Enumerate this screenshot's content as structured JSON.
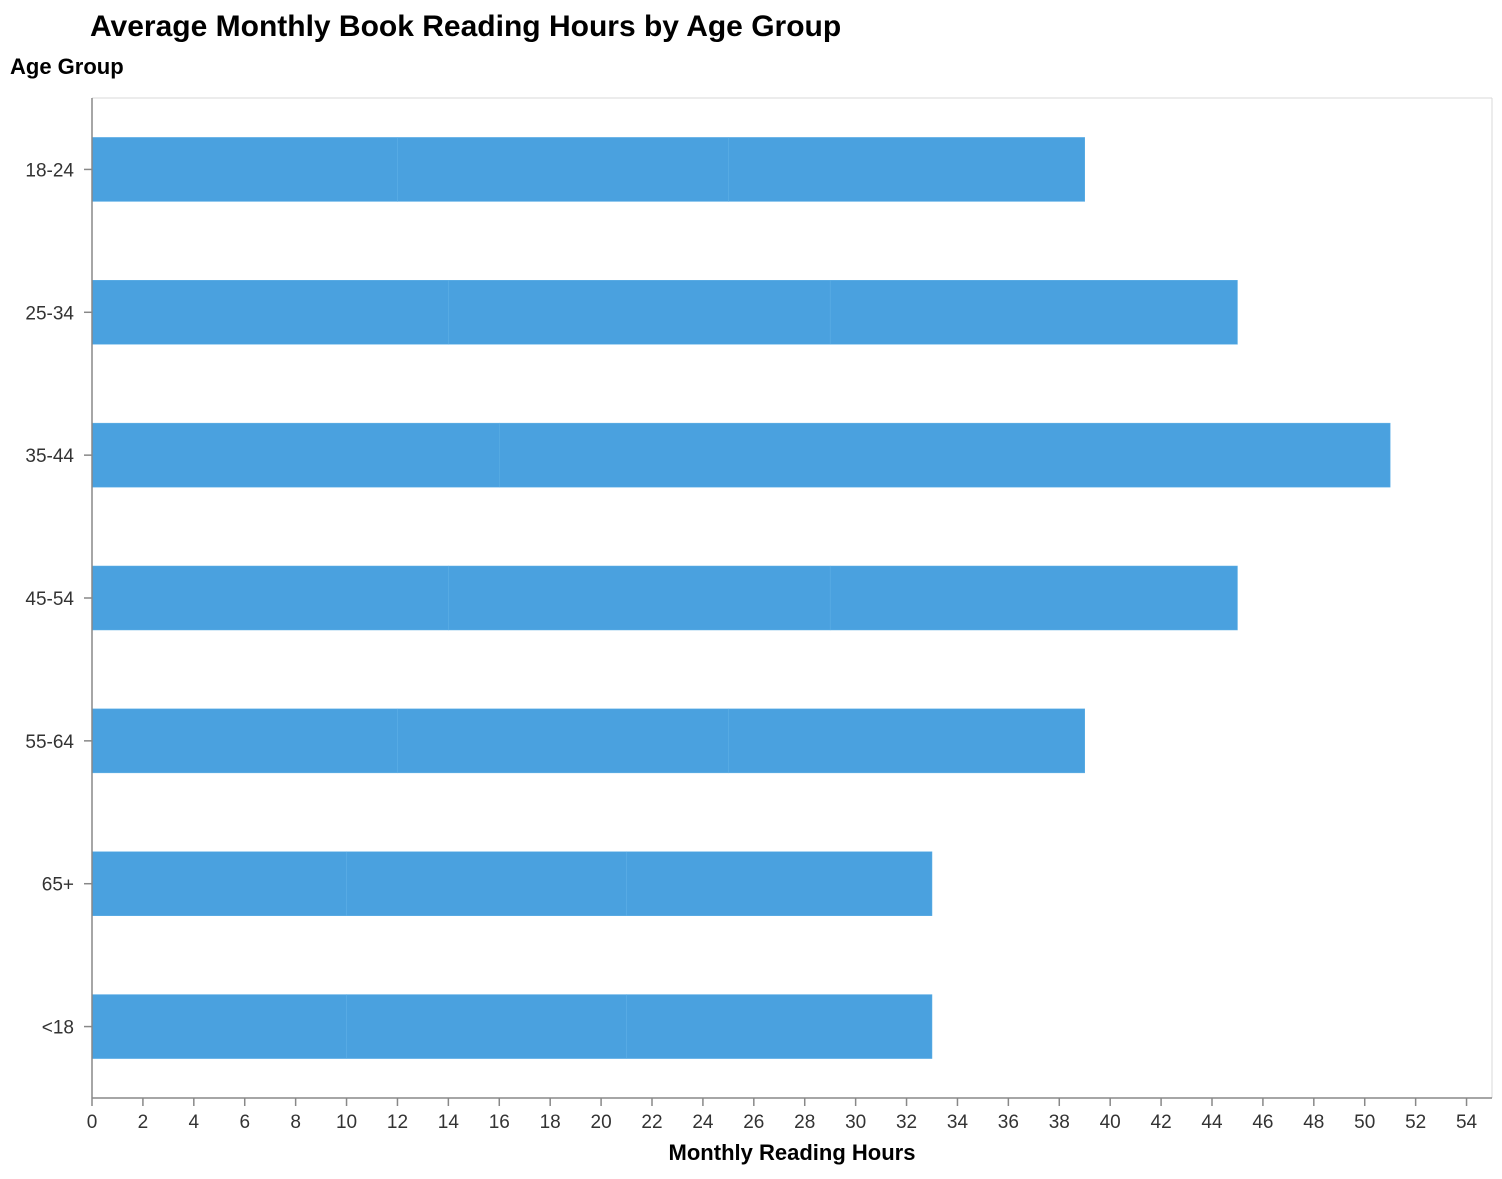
{
  "chart_data": {
    "type": "bar",
    "orientation": "horizontal",
    "stacked": true,
    "title": "Average Monthly Book Reading Hours by Age Group",
    "xlabel": "Monthly Reading Hours",
    "ylabel": "Age Group",
    "xlim": [
      0,
      55
    ],
    "x_ticks": [
      0,
      2,
      4,
      6,
      8,
      10,
      12,
      14,
      16,
      18,
      20,
      22,
      24,
      26,
      28,
      30,
      32,
      34,
      36,
      38,
      40,
      42,
      44,
      46,
      48,
      50,
      52,
      54
    ],
    "categories": [
      "18-24",
      "25-34",
      "35-44",
      "45-54",
      "55-64",
      "65+",
      "<18"
    ],
    "segment_breaks": [
      [
        12,
        25,
        39
      ],
      [
        14,
        29,
        45
      ],
      [
        16,
        51,
        51
      ],
      [
        14,
        29,
        45
      ],
      [
        12,
        25,
        39
      ],
      [
        10,
        21,
        33
      ],
      [
        10,
        21,
        33
      ]
    ],
    "totals": [
      39,
      45,
      51,
      45,
      39,
      33,
      33
    ],
    "bar_color": "#4aa1df",
    "grid": false,
    "legend": "none"
  }
}
